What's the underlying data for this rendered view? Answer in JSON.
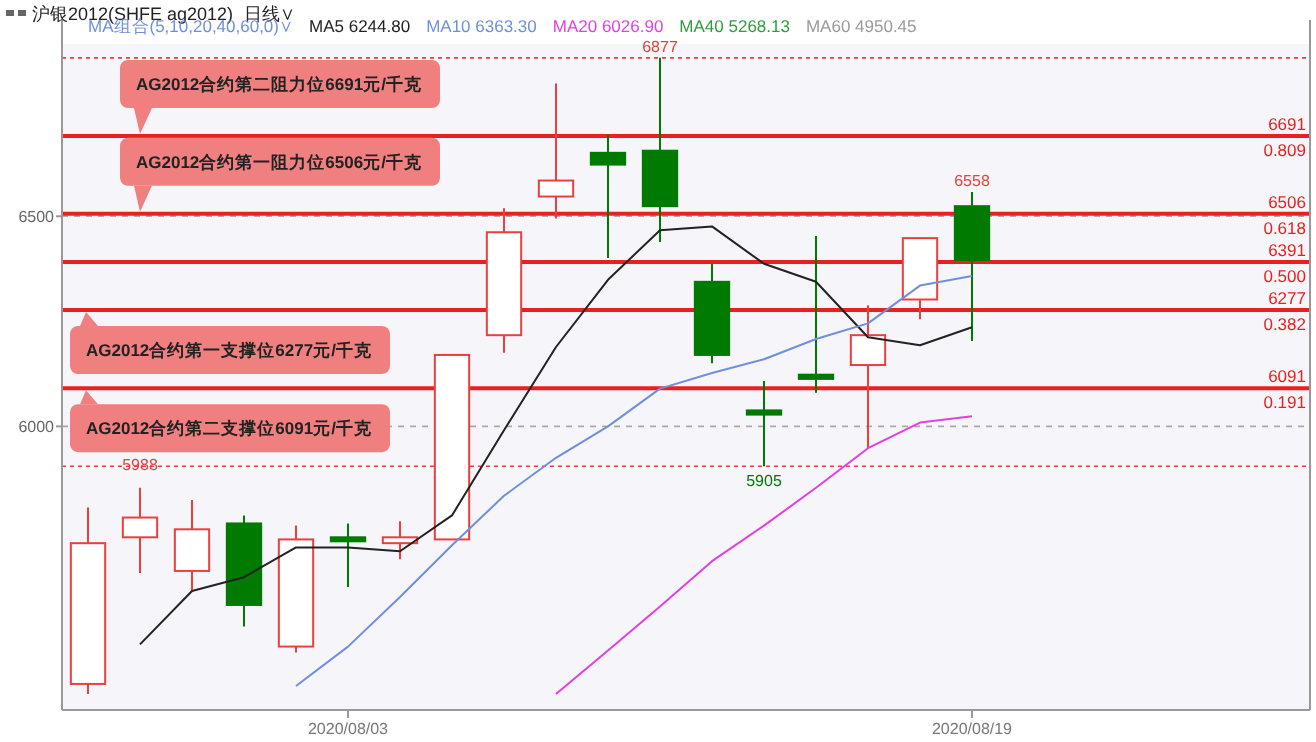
{
  "chart_data": {
    "type": "candlestick",
    "title": "沪银2012(SHFE ag2012)",
    "subtitle": "日线∨",
    "legend_title": "MA组合(5,10,20,40,60,0)∨",
    "categories": [
      null,
      null,
      null,
      null,
      null,
      "2020/08/03",
      null,
      null,
      null,
      null,
      null,
      null,
      null,
      null,
      null,
      null,
      null,
      "2020/08/19"
    ],
    "ohlc": [
      [
        5387,
        5807,
        5363,
        5722
      ],
      [
        5736,
        5854,
        5651,
        5783
      ],
      [
        5656,
        5825,
        5608,
        5755
      ],
      [
        5769,
        5788,
        5524,
        5575
      ],
      [
        5476,
        5764,
        5462,
        5731
      ],
      [
        5736,
        5769,
        5618,
        5727
      ],
      [
        5722,
        5774,
        5684,
        5736
      ],
      [
        5731,
        6170,
        5731,
        6170
      ],
      [
        6217,
        6519,
        6175,
        6462
      ],
      [
        6547,
        6816,
        6495,
        6585
      ],
      [
        6651,
        6693,
        6401,
        6623
      ],
      [
        6656,
        6877,
        6439,
        6524
      ],
      [
        6344,
        6387,
        6150,
        6170
      ],
      [
        6038,
        6108,
        5905,
        6028
      ],
      [
        6123,
        6453,
        6080,
        6113
      ],
      [
        6146,
        6288,
        5948,
        6217
      ],
      [
        6302,
        6448,
        6255,
        6448
      ],
      [
        6524,
        6558,
        6203,
        6396
      ]
    ],
    "colors": [
      "#e8403f",
      "#e8403f",
      "#e8403f",
      "#007a00",
      "#e8403f",
      "#007a00",
      "#e8403f",
      "#e8403f",
      "#e8403f",
      "#e8403f",
      "#007a00",
      "#007a00",
      "#007a00",
      "#007a00",
      "#007a00",
      "#e8403f",
      "#e8403f",
      "#007a00"
    ],
    "series": [
      {
        "name": "MA5 6244.80",
        "type": "line",
        "color": "#222222",
        "values": [
          null,
          5481,
          5608,
          5641,
          5712,
          5712,
          5703,
          5788,
          5991,
          6189,
          6349,
          6467,
          6476,
          6387,
          6344,
          6212,
          6193,
          6236
        ]
      },
      {
        "name": "MA10 6363.30",
        "type": "line",
        "color": "#6f8fdc",
        "values": [
          null,
          null,
          null,
          null,
          5382,
          5476,
          5594,
          5717,
          5835,
          5925,
          6000,
          6090,
          6127,
          6160,
          6208,
          6245,
          6335,
          6358
        ]
      },
      {
        "name": "MA20 6026.90",
        "type": "line",
        "color": "#e040e0",
        "values": [
          null,
          null,
          null,
          null,
          null,
          null,
          null,
          null,
          null,
          5363,
          5467,
          5571,
          5679,
          5764,
          5854,
          5948,
          6009,
          6024
        ]
      },
      {
        "name": "MA40 5268.13",
        "type": "line",
        "color": "#2e9c3a",
        "values": [
          null,
          null,
          null,
          null,
          null,
          null,
          null,
          null,
          null,
          null,
          null,
          null,
          null,
          null,
          null,
          null,
          null,
          null
        ]
      },
      {
        "name": "MA60 4950.45",
        "type": "line",
        "color": "#9a9a9a",
        "values": [
          null,
          null,
          null,
          null,
          null,
          null,
          null,
          null,
          null,
          null,
          null,
          null,
          null,
          null,
          null,
          null,
          null,
          null
        ]
      }
    ],
    "ylim": [
      5325,
      6910
    ],
    "yticks": [
      6000,
      6500
    ],
    "grid": "y",
    "legend": "top",
    "ref_lines": [
      {
        "axis": "y",
        "value": 6691,
        "label": "6691\n0.809",
        "color": "#e8201f",
        "line_style": "solid"
      },
      {
        "axis": "y",
        "value": 6506,
        "label": "6506\n0.618",
        "color": "#e8201f",
        "line_style": "solid"
      },
      {
        "axis": "y",
        "value": 6391,
        "label": "6391\n0.500",
        "color": "#e8201f",
        "line_style": "solid"
      },
      {
        "axis": "y",
        "value": 6277,
        "label": "6277\n0.382",
        "color": "#e8201f",
        "line_style": "solid"
      },
      {
        "axis": "y",
        "value": 6091,
        "label": "6091\n0.191",
        "color": "#e8201f",
        "line_style": "solid"
      },
      {
        "axis": "y",
        "value": 6877,
        "label": null,
        "color": "#e8403f",
        "line_style": "dotted"
      },
      {
        "axis": "y",
        "value": 5905,
        "label": null,
        "color": "#e8403f",
        "line_style": "dotted"
      }
    ],
    "annotations": [
      {
        "text": "AG2012合约第二阻力位6691元/千克",
        "y": 6691
      },
      {
        "text": "AG2012合约第一阻力位6506元/千克",
        "y": 6506
      },
      {
        "text": "AG2012合约第一支撑位6277元/千克",
        "y": 6277
      },
      {
        "text": "AG2012合约第二支撑位6091元/千克",
        "y": 6091
      },
      {
        "text": "6877",
        "y": 6877
      },
      {
        "text": "6558",
        "y": 6558
      },
      {
        "text": "5905",
        "y": 5905
      },
      "5988"
    ]
  }
}
